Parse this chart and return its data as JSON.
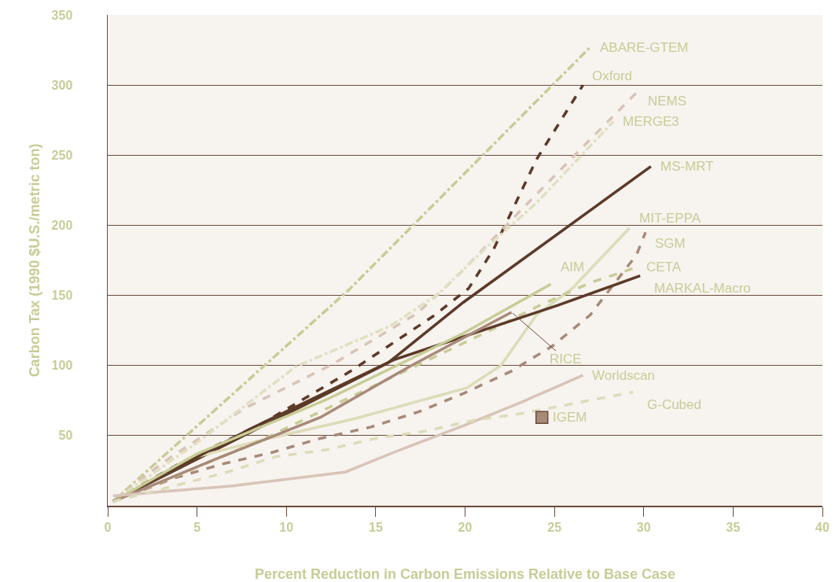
{
  "chart_data": {
    "type": "line",
    "xlabel": "Percent Reduction in Carbon Emissions Relative to Base Case",
    "ylabel": "Carbon Tax (1990 $U.S./metric ton)",
    "xlim": [
      0,
      40
    ],
    "xticks": [
      0,
      5,
      10,
      15,
      20,
      25,
      30,
      35,
      40
    ],
    "ylim": [
      0,
      350
    ],
    "yticks": [
      50,
      100,
      150,
      200,
      250,
      300,
      350
    ],
    "grid": "y",
    "legend": false,
    "series": [
      {
        "name": "ABARE-GTEM",
        "color": "#c8cc96",
        "line_style": "dashdot",
        "x": [
          0.3,
          13.5,
          27
        ],
        "values": [
          3,
          154,
          327
        ]
      },
      {
        "name": "Oxford",
        "color": "#5c3a28",
        "line_style": "dashed",
        "x": [
          0.3,
          4,
          8.7,
          13.6,
          18.2,
          20.2,
          21.6,
          24,
          26.6
        ],
        "values": [
          3,
          30,
          59,
          96,
          135,
          155,
          183,
          247,
          300
        ]
      },
      {
        "name": "NEMS",
        "color": "#d8c4b8",
        "line_style": "dashed",
        "x": [
          0.3,
          3,
          7.6,
          12.6,
          17.3,
          19.5,
          23.3,
          27.3,
          29.7
        ],
        "values": [
          3,
          30,
          69,
          101,
          137,
          163,
          213,
          265,
          296
        ]
      },
      {
        "name": "MERGE3",
        "color": "#e0e0c0",
        "line_style": "dashdot",
        "x": [
          0.3,
          5,
          10.5,
          15.8,
          18.5,
          21.1,
          24,
          28.3
        ],
        "values": [
          3,
          45,
          99,
          128,
          151,
          183,
          216,
          274
        ]
      },
      {
        "name": "MS-MRT",
        "color": "#5c3a28",
        "line_style": "solid",
        "x": [
          0.3,
          15.7,
          19.9,
          30.4
        ],
        "values": [
          3,
          102,
          145,
          242
        ]
      },
      {
        "name": "MIT-EPPA",
        "color": "#dcdcb8",
        "line_style": "solid",
        "x": [
          0.3,
          5,
          9,
          13.8,
          20.1,
          22,
          24,
          26,
          29.2
        ],
        "values": [
          3,
          35,
          48,
          62,
          84,
          100,
          136,
          155,
          198
        ]
      },
      {
        "name": "SGM",
        "color": "#a88a78",
        "line_style": "dashed",
        "x": [
          0.3,
          3.8,
          6.5,
          9.2,
          11.9,
          14.7,
          17.4,
          19.9,
          22.6,
          24.9,
          27,
          29.6,
          30.1
        ],
        "values": [
          3,
          20,
          30,
          38,
          48,
          56,
          67,
          80,
          96,
          114,
          136,
          179,
          195
        ]
      },
      {
        "name": "CETA",
        "color": "#c8cc96",
        "line_style": "dashed",
        "x": [
          0.3,
          3.8,
          8.8,
          11.4,
          14,
          21.4,
          24.2,
          27,
          29.6
        ],
        "values": [
          3,
          21,
          48,
          64,
          80,
          125,
          143,
          159,
          170
        ]
      },
      {
        "name": "MARKAL-Macro",
        "color": "#5c3a28",
        "line_style": "solid",
        "x": [
          0.3,
          8,
          16,
          25.2,
          29.8
        ],
        "values": [
          3,
          55,
          104,
          143,
          164
        ]
      },
      {
        "name": "AIM",
        "color": "#c8cc96",
        "line_style": "solid",
        "x": [
          0.3,
          5,
          12.3,
          19.9,
          24.8
        ],
        "values": [
          3,
          37,
          76,
          123,
          158
        ]
      },
      {
        "name": "RICE",
        "color": "#a88a78",
        "line_style": "solid",
        "x": [
          0.3,
          6,
          11.9,
          17,
          22.6
        ],
        "values": [
          3,
          33,
          63,
          100,
          138
        ]
      },
      {
        "name": "Worldscan",
        "color": "#d8c4b8",
        "line_style": "solid",
        "x": [
          0.3,
          3,
          6.9,
          13.3,
          16,
          19.9,
          23,
          26.6
        ],
        "values": [
          7,
          10,
          14,
          24,
          38,
          57,
          73,
          93
        ]
      },
      {
        "name": "G-Cubed",
        "color": "#dcdcb8",
        "line_style": "dashed",
        "x": [
          0.3,
          4,
          6.7,
          9.4,
          12.3,
          15,
          17.7,
          20.5,
          23.3,
          26.1,
          29.4
        ],
        "values": [
          3,
          15,
          24,
          35,
          40,
          48,
          53,
          61,
          66,
          73,
          81
        ]
      },
      {
        "name": "IGEM",
        "color": "#a88a78",
        "type": "scatter",
        "marker": "square",
        "x": [
          24.3
        ],
        "values": [
          63
        ]
      }
    ]
  }
}
